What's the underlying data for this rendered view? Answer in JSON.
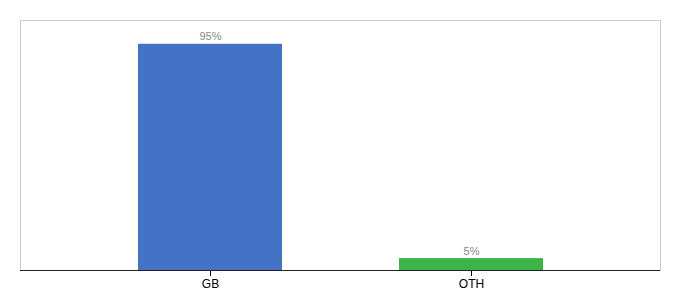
{
  "chart_data": {
    "type": "bar",
    "categories": [
      "GB",
      "OTH"
    ],
    "values": [
      95,
      5
    ],
    "value_labels": [
      "95%",
      "5%"
    ],
    "colors": [
      "#4472c4",
      "#3db34a"
    ],
    "ylim": [
      0,
      105
    ],
    "data_labels": true,
    "tick_labels": "x",
    "grid": false
  }
}
